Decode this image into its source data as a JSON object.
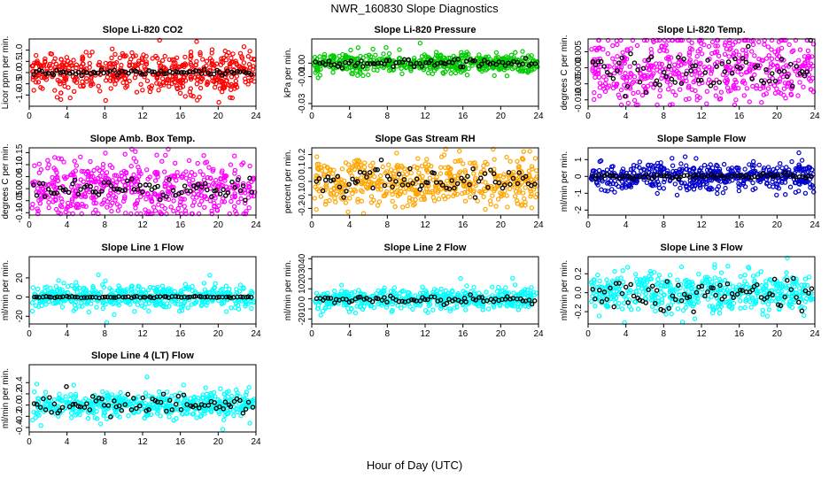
{
  "figure": {
    "title": "NWR_160830  Slope Diagnostics",
    "xlabel": "Hour of Day (UTC)"
  },
  "chart_data": [
    {
      "type": "scatter",
      "title": "Slope Li-820 CO2",
      "ylabel": "Licor ppm per min.",
      "color": "#ff0000",
      "xlim": [
        0,
        24
      ],
      "xticks": [
        0,
        4,
        8,
        12,
        16,
        20,
        24
      ],
      "ylim": [
        -1.5,
        1.5
      ],
      "yticks": [
        -1.0,
        -0.5,
        0.0,
        0.5,
        1.0
      ],
      "ytick_labels": [
        "-1.0",
        "-0.5",
        "0.0",
        "0.5",
        "1.0"
      ],
      "spread": 0.45,
      "amean": 0.0,
      "aspread": 0.06
    },
    {
      "type": "scatter",
      "title": "Slope Li-820 Pressure",
      "ylabel": "kPa per min.",
      "color": "#00cc00",
      "xlim": [
        0,
        24
      ],
      "xticks": [
        0,
        4,
        8,
        12,
        16,
        20,
        24
      ],
      "ylim": [
        -0.032,
        0.018
      ],
      "yticks": [
        -0.03,
        -0.01,
        0.0
      ],
      "ytick_labels": [
        "-0.03",
        "-0.01",
        "0.00"
      ],
      "spread": 0.004,
      "amean": 0.0,
      "aspread": 0.0015
    },
    {
      "type": "scatter",
      "title": "Slope Li-820 Temp.",
      "ylabel": "degrees C per min.",
      "color": "#ff00ff",
      "xlim": [
        0,
        24
      ],
      "xticks": [
        0,
        4,
        8,
        12,
        16,
        20,
        24
      ],
      "ylim": [
        -0.012,
        0.009
      ],
      "yticks": [
        -0.01,
        -0.005,
        0.0,
        0.005
      ],
      "ytick_labels": [
        "-0.010",
        "-0.005",
        "0.000",
        "0.005"
      ],
      "spread": 0.0055,
      "amean": -0.001,
      "aspread": 0.003
    },
    {
      "type": "scatter",
      "title": "Slope Amb. Box Temp.",
      "ylabel": "degrees C per min.",
      "color": "#ff00ff",
      "xlim": [
        0,
        24
      ],
      "xticks": [
        0,
        4,
        8,
        12,
        16,
        20,
        24
      ],
      "ylim": [
        -0.11,
        0.17
      ],
      "yticks": [
        -0.1,
        -0.05,
        0.0,
        0.05,
        0.1,
        0.15
      ],
      "ytick_labels": [
        "-0.10",
        "-0.05",
        "0.00",
        "0.05",
        "0.10",
        "0.15"
      ],
      "spread": 0.06,
      "amean": 0.0,
      "aspread": 0.02
    },
    {
      "type": "scatter",
      "title": "Slope Gas Stream RH",
      "ylabel": "percent per min.",
      "color": "#ffa500",
      "xlim": [
        0,
        24
      ],
      "xticks": [
        0,
        4,
        8,
        12,
        16,
        20,
        24
      ],
      "ylim": [
        -0.25,
        0.25
      ],
      "yticks": [
        -0.2,
        -0.1,
        0.0,
        0.1,
        0.2
      ],
      "ytick_labels": [
        "-0.2",
        "-0.1",
        "0.0",
        "0.1",
        "0.2"
      ],
      "spread": 0.09,
      "amean": 0.0,
      "aspread": 0.06
    },
    {
      "type": "scatter",
      "title": "Slope Sample Flow",
      "ylabel": "ml/min per min.",
      "color": "#0000cc",
      "xlim": [
        0,
        24
      ],
      "xticks": [
        0,
        4,
        8,
        12,
        16,
        20,
        24
      ],
      "ylim": [
        -2.3,
        1.7
      ],
      "yticks": [
        -2,
        -1,
        0,
        1
      ],
      "ytick_labels": [
        "-2",
        "-1",
        "0",
        "1"
      ],
      "spread": 0.4,
      "amean": 0.0,
      "aspread": 0.08
    },
    {
      "type": "scatter",
      "title": "Slope Line 1 Flow",
      "ylabel": "ml/min per min.",
      "color": "#00ffff",
      "xlim": [
        0,
        24
      ],
      "xticks": [
        0,
        4,
        8,
        12,
        16,
        20,
        24
      ],
      "ylim": [
        -28,
        42
      ],
      "yticks": [
        -20,
        0,
        20
      ],
      "ytick_labels": [
        "-20",
        "0",
        "20"
      ],
      "spread": 6,
      "amean": 0.0,
      "aspread": 0.4
    },
    {
      "type": "scatter",
      "title": "Slope Line 2 Flow",
      "ylabel": "ml/min per min.",
      "color": "#00ffff",
      "xlim": [
        0,
        24
      ],
      "xticks": [
        0,
        4,
        8,
        12,
        16,
        20,
        24
      ],
      "ylim": [
        -25,
        42
      ],
      "yticks": [
        -20,
        -10,
        0,
        10,
        20,
        30,
        40
      ],
      "ytick_labels": [
        "-20",
        "-10",
        "0",
        "10",
        "20",
        "30",
        "40"
      ],
      "spread": 5,
      "amean": -1.0,
      "aspread": 2
    },
    {
      "type": "scatter",
      "title": "Slope Line 3 Flow",
      "ylabel": "ml/min per min.",
      "color": "#00ffff",
      "xlim": [
        0,
        24
      ],
      "xticks": [
        0,
        4,
        8,
        12,
        16,
        20,
        24
      ],
      "ylim": [
        -0.33,
        0.38
      ],
      "yticks": [
        -0.2,
        0.0,
        0.2
      ],
      "ytick_labels": [
        "-0.2",
        "0.0",
        "0.2"
      ],
      "spread": 0.1,
      "amean": 0.0,
      "aspread": 0.09
    },
    {
      "type": "scatter",
      "title": "Slope Line 4 (LT) Flow",
      "ylabel": "ml/min per min.",
      "color": "#00ffff",
      "xlim": [
        0,
        24
      ],
      "xticks": [
        0,
        4,
        8,
        12,
        16,
        20,
        24
      ],
      "ylim": [
        -0.48,
        0.72
      ],
      "yticks": [
        -0.4,
        -0.2,
        0.0,
        0.2,
        0.4
      ],
      "ytick_labels": [
        "-0.4",
        "-0.2",
        "0.0",
        "0.2",
        "0.4"
      ],
      "spread": 0.11,
      "amean": 0.0,
      "aspread": 0.09
    }
  ]
}
